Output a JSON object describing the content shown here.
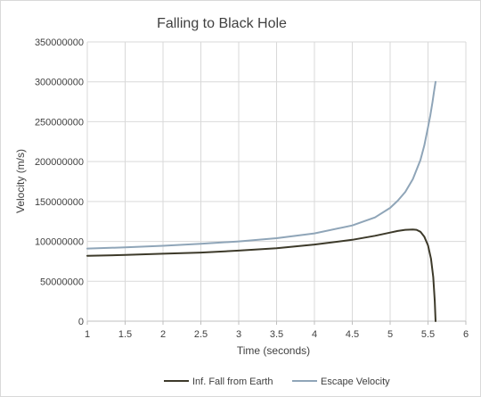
{
  "chart_data": {
    "type": "line",
    "title": "Falling to Black Hole",
    "xlabel": "Time (seconds)",
    "ylabel": "Velocity (m/s)",
    "xlim": [
      1,
      6
    ],
    "ylim": [
      0,
      350000000
    ],
    "x_ticks": [
      1,
      1.5,
      2,
      2.5,
      3,
      3.5,
      4,
      4.5,
      5,
      5.5,
      6
    ],
    "x_tick_labels": [
      "1",
      "1.5",
      "2",
      "2.5",
      "3",
      "3.5",
      "4",
      "4.5",
      "5",
      "5.5",
      "6"
    ],
    "y_ticks": [
      0,
      50000000,
      100000000,
      150000000,
      200000000,
      250000000,
      300000000,
      350000000
    ],
    "y_tick_labels": [
      "0",
      "50000000",
      "100000000",
      "150000000",
      "200000000",
      "250000000",
      "300000000",
      "350000000"
    ],
    "grid": true,
    "legend_position": "bottom",
    "series": [
      {
        "name": "Inf. Fall from Earth",
        "color": "#3d3a2a",
        "x": [
          1,
          1.5,
          2,
          2.5,
          3,
          3.5,
          4,
          4.5,
          4.8,
          5.0,
          5.1,
          5.2,
          5.3,
          5.35,
          5.4,
          5.45,
          5.5,
          5.54,
          5.57,
          5.59,
          5.6
        ],
        "y": [
          82000000,
          83000000,
          84500000,
          86000000,
          88500000,
          91500000,
          96000000,
          102000000,
          107000000,
          111000000,
          113000000,
          114500000,
          115000000,
          114500000,
          112000000,
          106000000,
          95000000,
          78000000,
          55000000,
          25000000,
          0
        ]
      },
      {
        "name": "Escape Velocity",
        "color": "#8fa5b8",
        "x": [
          1,
          1.5,
          2,
          2.5,
          3,
          3.5,
          4,
          4.5,
          4.8,
          5.0,
          5.1,
          5.2,
          5.3,
          5.4,
          5.45,
          5.5,
          5.53,
          5.56,
          5.58,
          5.6
        ],
        "y": [
          91000000,
          92500000,
          94500000,
          97000000,
          100000000,
          104000000,
          110000000,
          120000000,
          130000000,
          142000000,
          151000000,
          162000000,
          178000000,
          202000000,
          220000000,
          243000000,
          258000000,
          275000000,
          288000000,
          300000000
        ]
      }
    ]
  }
}
